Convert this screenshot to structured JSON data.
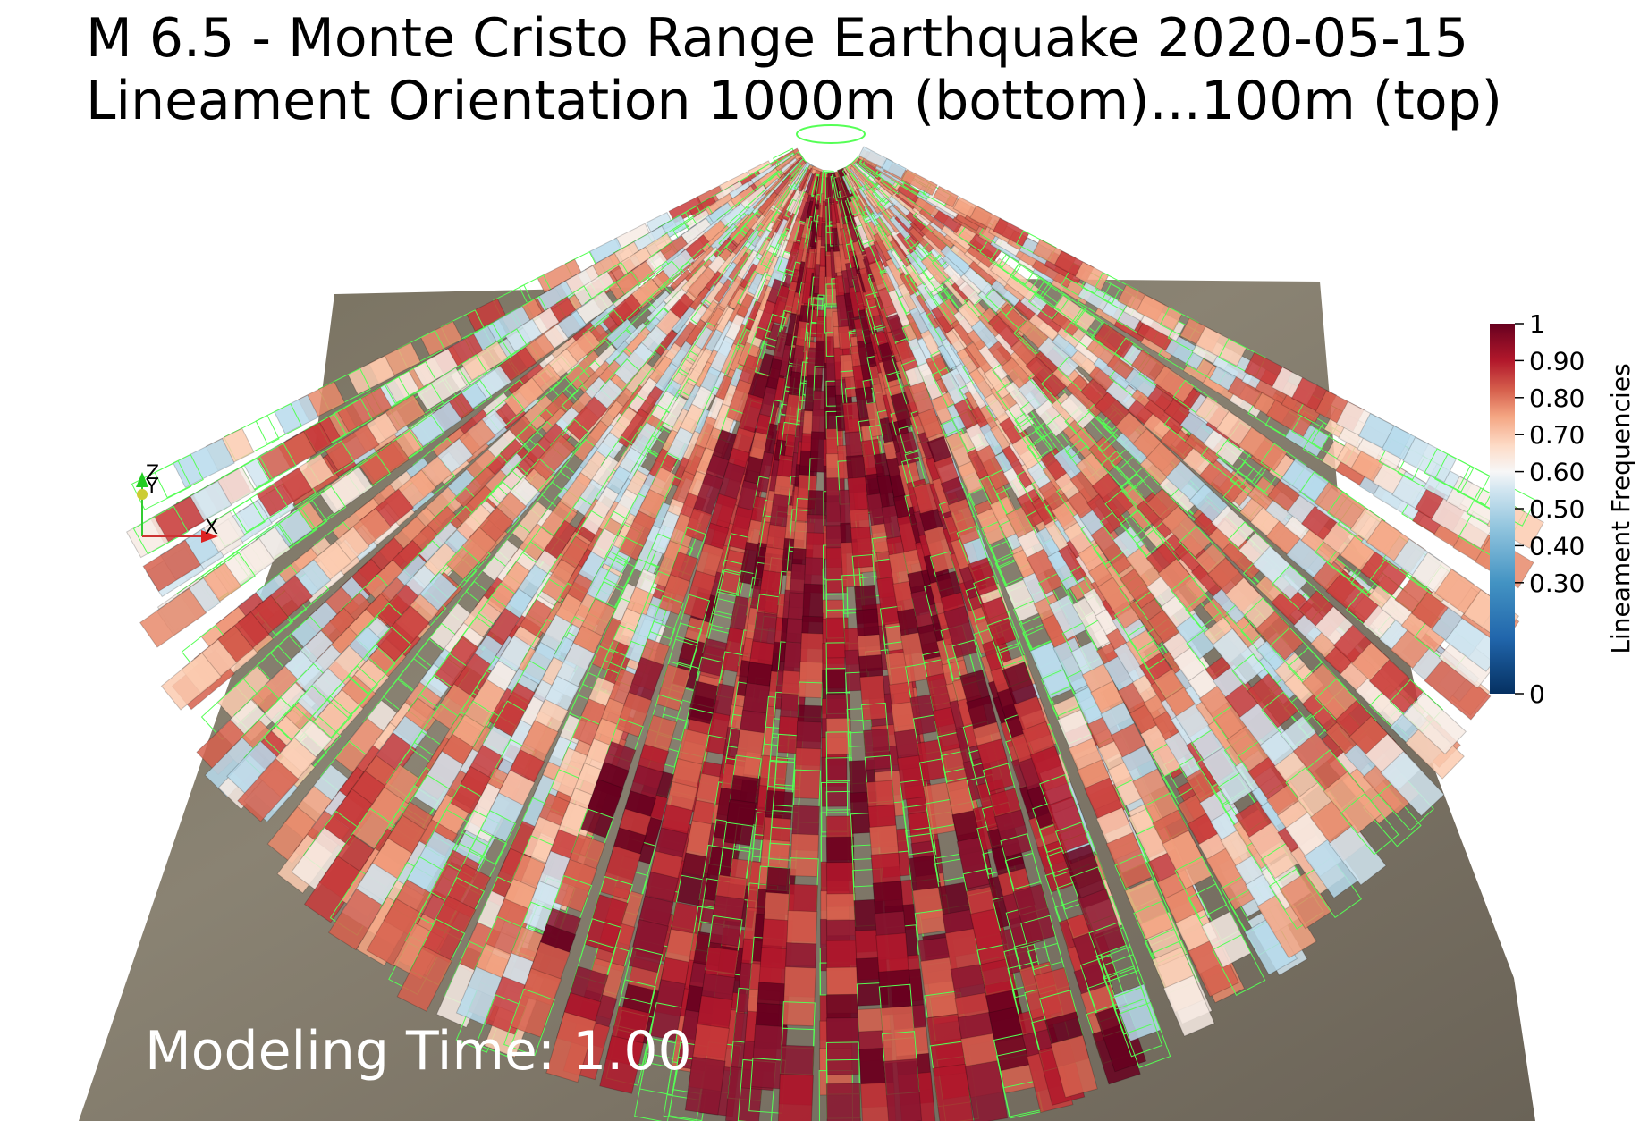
{
  "title": [
    "M 6.5  - Monte Cristo Range Earthquake 2020-05-15",
    "Lineament Orientation 1000m (bottom)...100m (top)"
  ],
  "colorbar": {
    "title": "Lineament Frequencies",
    "range": [
      0,
      1
    ],
    "ticks": [
      0,
      {
        "value": 0.3,
        "label": "0.30"
      },
      {
        "value": 0.4,
        "label": "0.40"
      },
      {
        "value": 0.5,
        "label": "0.50"
      },
      {
        "value": 0.6,
        "label": "0.60"
      },
      {
        "value": 0.7,
        "label": "0.70"
      },
      {
        "value": 0.8,
        "label": "0.80"
      },
      {
        "value": 0.9,
        "label": "0.90"
      },
      1
    ]
  },
  "axes": {
    "z": "Z",
    "y": "Y",
    "x": "X"
  },
  "annotation": "Modeling Time: 1.00"
}
